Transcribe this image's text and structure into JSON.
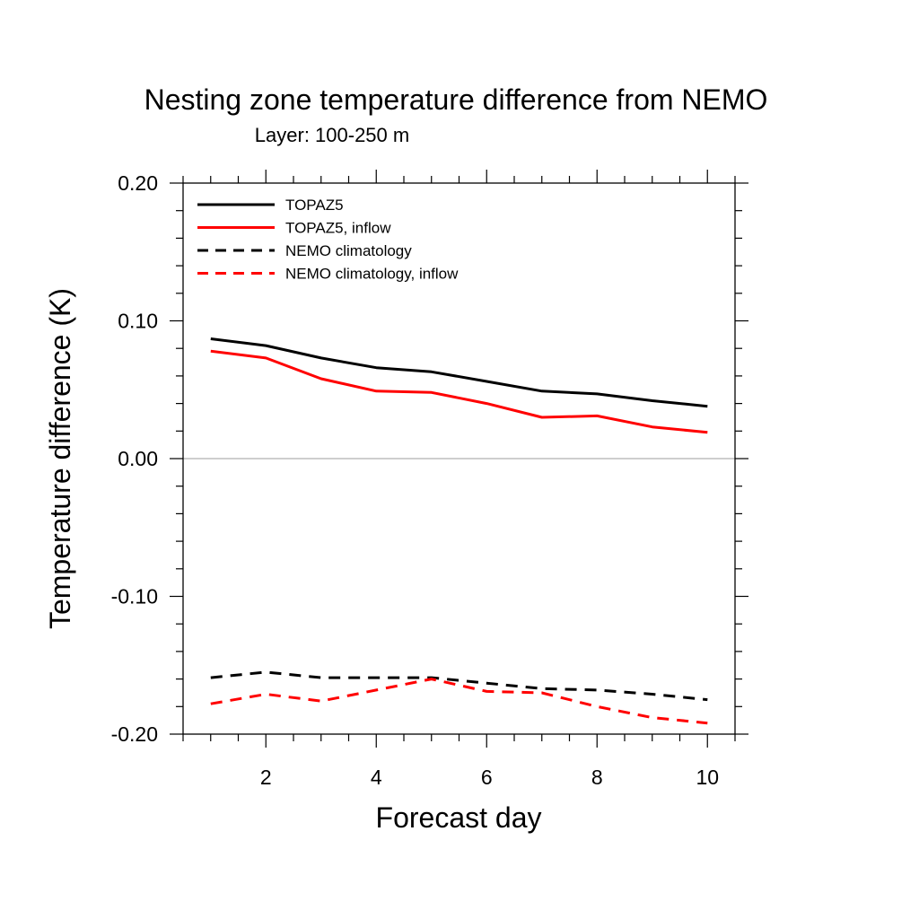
{
  "chart_data": {
    "type": "line",
    "title": "Nesting zone temperature difference from NEMO",
    "subtitle": "Layer: 100-250 m",
    "xlabel": "Forecast day",
    "ylabel": "Temperature difference (K)",
    "xlim": [
      0.5,
      10.5
    ],
    "ylim": [
      -0.2,
      0.2
    ],
    "x_ticks": [
      2,
      4,
      6,
      8,
      10
    ],
    "x_tick_labels": [
      "2",
      "4",
      "6",
      "8",
      "10"
    ],
    "x_minor_step": 0.5,
    "y_ticks": [
      0.2,
      0.1,
      0.0,
      -0.1,
      -0.2
    ],
    "y_tick_labels": [
      "0.20",
      "0.10",
      "0.00",
      "-0.10",
      "-0.20"
    ],
    "y_minor_step": 0.02,
    "zero_line": true,
    "grid": false,
    "legend_position": "top-left",
    "x": [
      1,
      2,
      3,
      4,
      5,
      6,
      7,
      8,
      9,
      10
    ],
    "series": [
      {
        "name": "TOPAZ5",
        "color": "#000000",
        "style": "solid",
        "values": [
          0.087,
          0.082,
          0.073,
          0.066,
          0.063,
          0.056,
          0.049,
          0.047,
          0.042,
          0.038
        ]
      },
      {
        "name": "TOPAZ5, inflow",
        "color": "#ff0000",
        "style": "solid",
        "values": [
          0.078,
          0.073,
          0.058,
          0.049,
          0.048,
          0.04,
          0.03,
          0.031,
          0.023,
          0.019
        ]
      },
      {
        "name": "NEMO climatology",
        "color": "#000000",
        "style": "dashed",
        "values": [
          -0.159,
          -0.155,
          -0.159,
          -0.159,
          -0.159,
          -0.163,
          -0.167,
          -0.168,
          -0.171,
          -0.175
        ]
      },
      {
        "name": "NEMO climatology, inflow",
        "color": "#ff0000",
        "style": "dashed",
        "values": [
          -0.178,
          -0.171,
          -0.176,
          -0.168,
          -0.16,
          -0.169,
          -0.17,
          -0.18,
          -0.188,
          -0.192
        ]
      }
    ]
  }
}
